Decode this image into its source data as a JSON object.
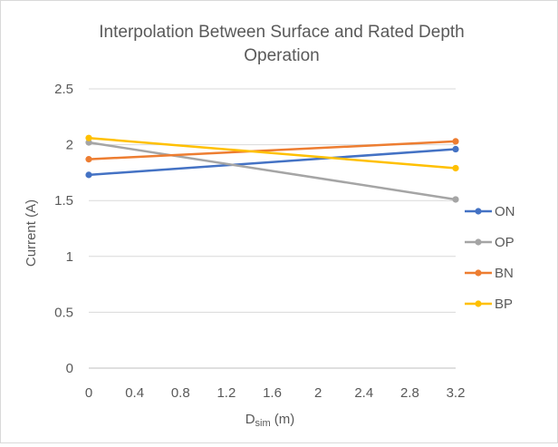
{
  "chart_data": {
    "type": "line",
    "title_line1": "Interpolation Between Surface and Rated Depth",
    "title_line2": "Operation",
    "xlabel_main": "D",
    "xlabel_sub": "sim",
    "xlabel_unit": " (m)",
    "ylabel": "Current (A)",
    "xlim": [
      0,
      3.2
    ],
    "ylim": [
      0,
      2.5
    ],
    "x_ticks": [
      "0",
      "0.4",
      "0.8",
      "1.2",
      "1.6",
      "2",
      "2.4",
      "2.8",
      "3.2"
    ],
    "y_ticks": [
      "0",
      "0.5",
      "1",
      "1.5",
      "2",
      "2.5"
    ],
    "grid": true,
    "legend_position": "right",
    "x": [
      0,
      3.2
    ],
    "series": [
      {
        "name": "ON",
        "values": [
          1.73,
          1.96
        ],
        "color": "#4472C4"
      },
      {
        "name": "OP",
        "values": [
          2.02,
          1.51
        ],
        "color": "#A5A5A5"
      },
      {
        "name": "BN",
        "values": [
          1.87,
          2.03
        ],
        "color": "#ED7D31"
      },
      {
        "name": "BP",
        "values": [
          2.06,
          1.79
        ],
        "color": "#FFC000"
      }
    ]
  }
}
